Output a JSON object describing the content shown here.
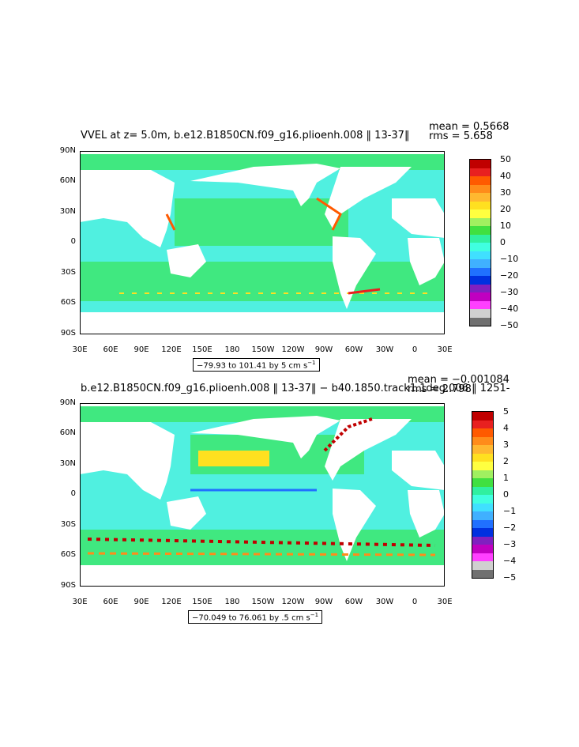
{
  "panels": [
    {
      "title": "VVEL at z=    5.0m, b.e12.B1850CN.f09_g16.plioenh.008  ‖ 13-37‖",
      "mean_text": "mean = 0.5668",
      "rms_text": "rms = 5.658",
      "range_text": "−79.93 to 101.41 by 5 cm s",
      "range_unit_exp": "−1",
      "lat_labels": [
        "90N",
        "60N",
        "30N",
        "0",
        "30S",
        "60S",
        "90S"
      ],
      "lon_labels": [
        "30E",
        "60E",
        "90E",
        "120E",
        "150E",
        "180",
        "150W",
        "120W",
        "90W",
        "60W",
        "30W",
        "0",
        "30E"
      ],
      "colorbar_labels": [
        "50",
        "40",
        "30",
        "20",
        "10",
        "0",
        "−10",
        "−20",
        "−30",
        "−40",
        "−50"
      ]
    },
    {
      "title": "b.e12.B1850CN.f09_g16.plioenh.008  ‖ 13-37‖  −  b40.1850.track1.1deg.006  ‖ 1251-",
      "mean_text": "mean = −0.001084",
      "rms_text": "rms = 2.798",
      "range_text": "−70.049 to 76.061 by .5 cm s",
      "range_unit_exp": "−1",
      "lat_labels": [
        "90N",
        "60N",
        "30N",
        "0",
        "30S",
        "60S",
        "90S"
      ],
      "lon_labels": [
        "30E",
        "60E",
        "90E",
        "120E",
        "150E",
        "180",
        "150W",
        "120W",
        "90W",
        "60W",
        "30W",
        "0",
        "30E"
      ],
      "colorbar_labels": [
        "5",
        "4",
        "3",
        "2",
        "1",
        "0",
        "−1",
        "−2",
        "−3",
        "−4",
        "−5"
      ]
    }
  ],
  "colorbar_colors": [
    "#c00000",
    "#e82020",
    "#ff5a00",
    "#ff8c1a",
    "#ffb830",
    "#ffe020",
    "#ffff40",
    "#a0f060",
    "#40e040",
    "#30f0a0",
    "#40ffe0",
    "#40e0ff",
    "#40b0ff",
    "#2070ff",
    "#0030e0",
    "#8020c0",
    "#c000c0",
    "#ff40ff",
    "#d0d0d0",
    "#707070"
  ],
  "colors": {
    "land": "#ffffff",
    "ocean_base": "#40e880",
    "ocean_cyan": "#50f0e0",
    "frame": "#000000"
  }
}
